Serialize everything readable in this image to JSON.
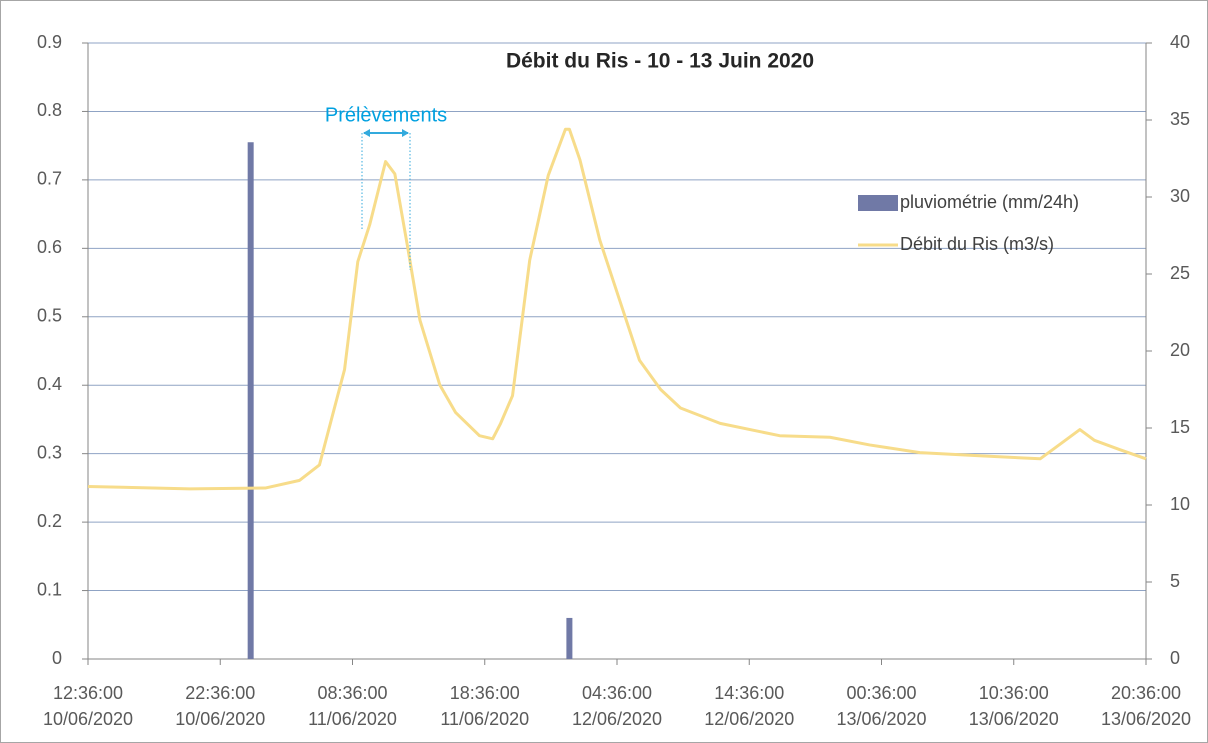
{
  "chart_data": {
    "type": "combo",
    "title": "Débit du Ris -  10 - 13 Juin 2020",
    "annotation": "Prélèvements",
    "xlim": [
      "2020-06-10T12:36",
      "2020-06-13T20:36"
    ],
    "xticks": [
      {
        "value": "2020-06-10T12:36",
        "label": "12:36:00\n10/06/2020"
      },
      {
        "value": "2020-06-10T22:36",
        "label": "22:36:00\n10/06/2020"
      },
      {
        "value": "2020-06-11T08:36",
        "label": "08:36:00\n11/06/2020"
      },
      {
        "value": "2020-06-11T18:36",
        "label": "18:36:00\n11/06/2020"
      },
      {
        "value": "2020-06-12T04:36",
        "label": "04:36:00\n12/06/2020"
      },
      {
        "value": "2020-06-12T14:36",
        "label": "14:36:00\n12/06/2020"
      },
      {
        "value": "2020-06-13T00:36",
        "label": "00:36:00\n13/06/2020"
      },
      {
        "value": "2020-06-13T10:36",
        "label": "10:36:00\n13/06/2020"
      },
      {
        "value": "2020-06-13T20:36",
        "label": "20:36:00\n13/06/2020"
      }
    ],
    "ylim": [
      0,
      0.9
    ],
    "yticks": [
      0,
      0.1,
      0.2,
      0.3,
      0.4,
      0.5,
      0.6,
      0.7,
      0.8,
      0.9
    ],
    "y2lim": [
      0,
      40
    ],
    "y2ticks": [
      0,
      5,
      10,
      15,
      20,
      25,
      30,
      35,
      40
    ],
    "grid": true,
    "legend": "right",
    "series": [
      {
        "name": "pluviométrie (mm/24h)",
        "type": "bar",
        "color": "#7079a6",
        "x": [
          "2020-06-11T00:54",
          "2020-06-12T01:00"
        ],
        "values": [
          0.755,
          0.06
        ]
      },
      {
        "name": "Débit du Ris (m3/s)",
        "type": "line",
        "axis": "y2",
        "color": "#f7dc8a",
        "x": [
          "2020-06-10T12:36",
          "2020-06-10T20:18",
          "2020-06-11T02:00",
          "2020-06-11T04:36",
          "2020-06-11T06:06",
          "2020-06-11T08:00",
          "2020-06-11T09:00",
          "2020-06-11T09:54",
          "2020-06-11T11:06",
          "2020-06-11T11:48",
          "2020-06-11T12:48",
          "2020-06-11T13:42",
          "2020-06-11T15:12",
          "2020-06-11T16:24",
          "2020-06-11T18:12",
          "2020-06-11T19:12",
          "2020-06-11T19:48",
          "2020-06-11T20:42",
          "2020-06-11T22:00",
          "2020-06-11T23:24",
          "2020-06-12T00:42",
          "2020-06-12T01:00",
          "2020-06-12T01:48",
          "2020-06-12T03:18",
          "2020-06-12T04:48",
          "2020-06-12T06:18",
          "2020-06-12T07:54",
          "2020-06-12T09:24",
          "2020-06-12T12:24",
          "2020-06-12T16:54",
          "2020-06-12T20:42",
          "2020-06-12T23:42",
          "2020-06-13T03:30",
          "2020-06-13T08:00",
          "2020-06-13T12:36",
          "2020-06-13T14:30",
          "2020-06-13T15:36",
          "2020-06-13T16:42",
          "2020-06-13T18:36",
          "2020-06-13T20:36"
        ],
        "values": [
          11.2,
          11.05,
          11.1,
          11.6,
          12.6,
          18.8,
          25.8,
          28.2,
          32.3,
          31.5,
          26.6,
          22,
          17.8,
          16,
          14.5,
          14.3,
          15.3,
          17.1,
          25.9,
          31.4,
          34.4,
          34.4,
          32.4,
          27.2,
          23.3,
          19.4,
          17.5,
          16.3,
          15.3,
          14.5,
          14.4,
          13.9,
          13.4,
          13.2,
          13,
          14.2,
          14.9,
          14.2,
          13.6,
          13
        ]
      }
    ]
  }
}
